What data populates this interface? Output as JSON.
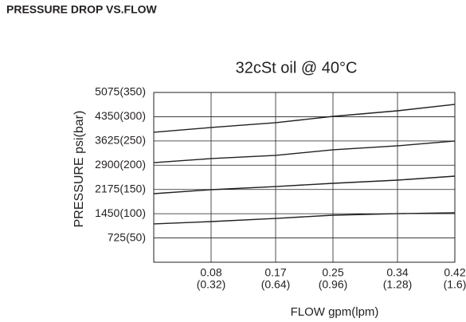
{
  "heading": "PRESSURE DROP VS.FLOW",
  "chart_data": {
    "type": "line",
    "title": "32cSt oil @ 40°C",
    "xlabel": "FLOW gpm(lpm)",
    "ylabel": "PRESSURE  psi(bar)",
    "x": [
      0,
      0.08,
      0.17,
      0.25,
      0.34,
      0.42
    ],
    "series": [
      {
        "color": "#231f20",
        "values": [
          3884,
          4027,
          4170,
          4360,
          4527,
          4718
        ]
      },
      {
        "color": "#231f20",
        "values": [
          2978,
          3098,
          3193,
          3360,
          3479,
          3622
        ]
      },
      {
        "color": "#231f20",
        "values": [
          2049,
          2168,
          2263,
          2359,
          2454,
          2573
        ]
      },
      {
        "color": "#231f20",
        "values": [
          1144,
          1215,
          1310,
          1406,
          1453,
          1477
        ]
      }
    ],
    "xlim": [
      0,
      0.42
    ],
    "ylim": [
      0,
      5075
    ],
    "xticks": [
      {
        "value": 0.08,
        "label": "0.08",
        "sublabel": "(0.32)"
      },
      {
        "value": 0.17,
        "label": "0.17",
        "sublabel": "(0.64)"
      },
      {
        "value": 0.25,
        "label": "0.25",
        "sublabel": "(0.96)"
      },
      {
        "value": 0.34,
        "label": "0.34",
        "sublabel": "(1.28)"
      },
      {
        "value": 0.42,
        "label": "0.42",
        "sublabel": "(1.6)"
      }
    ],
    "yticks": [
      {
        "value": 725,
        "label": "725(50)"
      },
      {
        "value": 1450,
        "label": "1450(100)"
      },
      {
        "value": 2175,
        "label": "2175(150)"
      },
      {
        "value": 2900,
        "label": "2900(200)"
      },
      {
        "value": 3625,
        "label": "3625(250)"
      },
      {
        "value": 4350,
        "label": "4350(300)"
      },
      {
        "value": 5075,
        "label": "5075(350)"
      }
    ],
    "grid": true
  }
}
